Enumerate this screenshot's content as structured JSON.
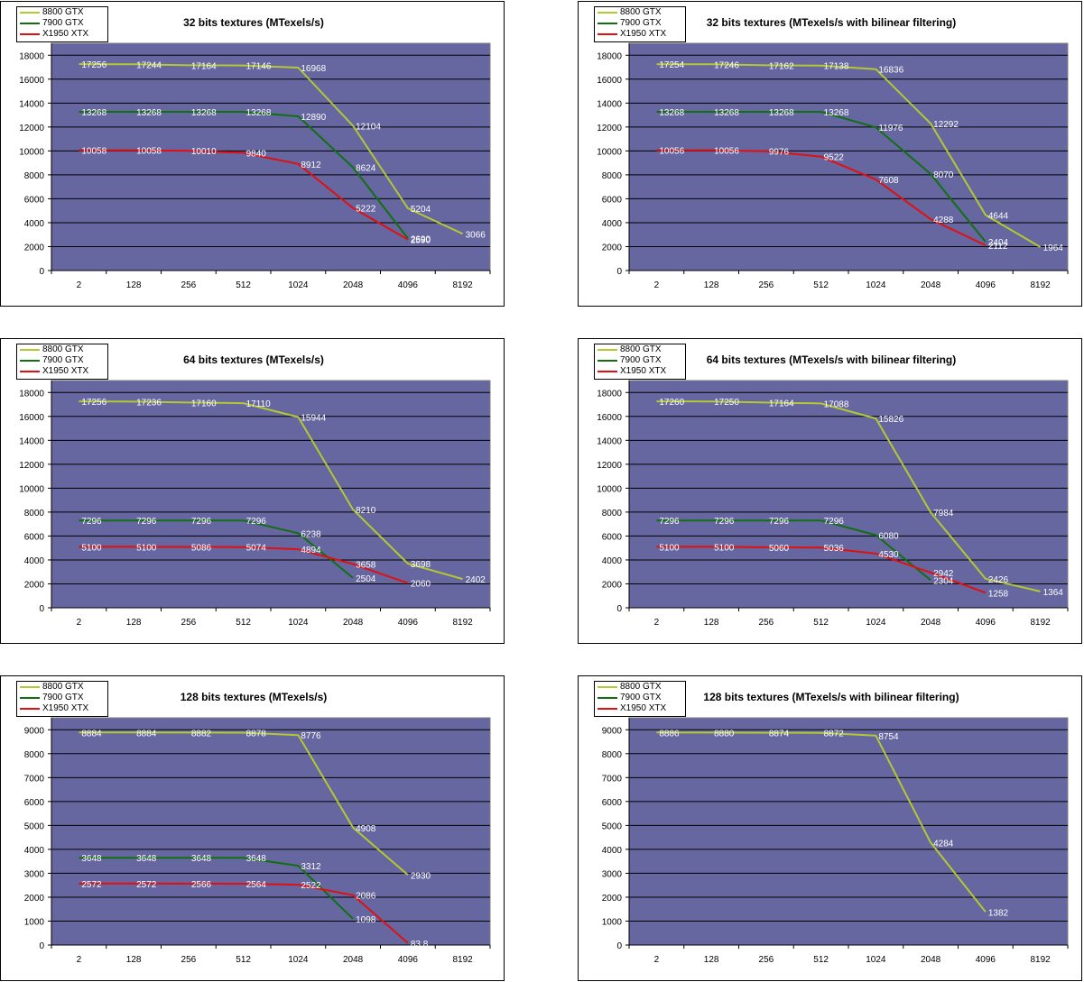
{
  "colors": {
    "plot_bg": "#6666a0",
    "grid": "#000000",
    "8800 GTX": "#b4c832",
    "7900 GTX": "#107010",
    "X1950 XTX": "#e01010",
    "data_label": "#ffffff"
  },
  "chart_data": [
    {
      "type": "line",
      "title": "32 bits textures (MTexels/s)",
      "categories": [
        "2",
        "128",
        "256",
        "512",
        "1024",
        "2048",
        "4096",
        "8192"
      ],
      "ylim": [
        0,
        19000
      ],
      "yticks": [
        0,
        2000,
        4000,
        6000,
        8000,
        10000,
        12000,
        14000,
        16000,
        18000
      ],
      "grid": true,
      "legend": "top-left",
      "series": [
        {
          "name": "8800 GTX",
          "values": [
            17256,
            17244,
            17164,
            17146,
            16968,
            12104,
            5204,
            3066
          ],
          "labels": [
            "17256",
            "17244",
            "17164",
            "17146",
            "16968",
            "12104",
            "5204",
            "3066"
          ]
        },
        {
          "name": "7900 GTX",
          "values": [
            13268,
            13268,
            13268,
            13268,
            12890,
            8624,
            2690,
            null
          ],
          "labels": [
            "13268",
            "13268",
            "13268",
            "13268",
            "12890",
            "8624",
            "2690",
            ""
          ]
        },
        {
          "name": "X1950 XTX",
          "values": [
            10058,
            10058,
            10010,
            9840,
            8912,
            5222,
            2590,
            null
          ],
          "labels": [
            "10058",
            "10058",
            "10010",
            "9840",
            "8912",
            "5222",
            "2590",
            ""
          ]
        }
      ]
    },
    {
      "type": "line",
      "title": "32 bits textures (MTexels/s with bilinear filtering)",
      "categories": [
        "2",
        "128",
        "256",
        "512",
        "1024",
        "2048",
        "4096",
        "8192"
      ],
      "ylim": [
        0,
        19000
      ],
      "yticks": [
        0,
        2000,
        4000,
        6000,
        8000,
        10000,
        12000,
        14000,
        16000,
        18000
      ],
      "grid": true,
      "legend": "top-left",
      "series": [
        {
          "name": "8800 GTX",
          "values": [
            17254,
            17246,
            17162,
            17138,
            16836,
            12292,
            4644,
            1964
          ],
          "labels": [
            "17254",
            "17246",
            "17162",
            "17138",
            "16836",
            "12292",
            "4644",
            "1964"
          ]
        },
        {
          "name": "7900 GTX",
          "values": [
            13268,
            13268,
            13268,
            13268,
            11976,
            8070,
            2404,
            null
          ],
          "labels": [
            "13268",
            "13268",
            "13268",
            "13268",
            "11976",
            "8070",
            "2404",
            ""
          ]
        },
        {
          "name": "X1950 XTX",
          "values": [
            10056,
            10056,
            9976,
            9522,
            7608,
            4288,
            2112,
            null
          ],
          "labels": [
            "10056",
            "10056",
            "9976",
            "9522",
            "7608",
            "4288",
            "2112",
            ""
          ]
        }
      ]
    },
    {
      "type": "line",
      "title": "64 bits textures (MTexels/s)",
      "categories": [
        "2",
        "128",
        "256",
        "512",
        "1024",
        "2048",
        "4096",
        "8192"
      ],
      "ylim": [
        0,
        19000
      ],
      "yticks": [
        0,
        2000,
        4000,
        6000,
        8000,
        10000,
        12000,
        14000,
        16000,
        18000
      ],
      "grid": true,
      "legend": "top-left",
      "series": [
        {
          "name": "8800 GTX",
          "values": [
            17256,
            17236,
            17160,
            17110,
            15944,
            8210,
            3698,
            2402
          ],
          "labels": [
            "17256",
            "17236",
            "17160",
            "17110",
            "15944",
            "8210",
            "3698",
            "2402"
          ]
        },
        {
          "name": "7900 GTX",
          "values": [
            7296,
            7296,
            7296,
            7296,
            6238,
            2504,
            null,
            null
          ],
          "labels": [
            "7296",
            "7296",
            "7296",
            "7296",
            "6238",
            "2504",
            "",
            ""
          ]
        },
        {
          "name": "X1950 XTX",
          "values": [
            5100,
            5100,
            5086,
            5074,
            4894,
            3658,
            2060,
            null
          ],
          "labels": [
            "5100",
            "5100",
            "5086",
            "5074",
            "4894",
            "3658",
            "2060",
            ""
          ]
        }
      ]
    },
    {
      "type": "line",
      "title": "64 bits textures (MTexels/s with bilinear filtering)",
      "categories": [
        "2",
        "128",
        "256",
        "512",
        "1024",
        "2048",
        "4096",
        "8192"
      ],
      "ylim": [
        0,
        19000
      ],
      "yticks": [
        0,
        2000,
        4000,
        6000,
        8000,
        10000,
        12000,
        14000,
        16000,
        18000
      ],
      "grid": true,
      "legend": "top-left",
      "series": [
        {
          "name": "8800 GTX",
          "values": [
            17260,
            17250,
            17164,
            17088,
            15826,
            7984,
            2426,
            1364
          ],
          "labels": [
            "17260",
            "17250",
            "17164",
            "17088",
            "15826",
            "7984",
            "2426",
            "1364"
          ]
        },
        {
          "name": "7900 GTX",
          "values": [
            7296,
            7296,
            7296,
            7296,
            6080,
            2304,
            null,
            null
          ],
          "labels": [
            "7296",
            "7296",
            "7296",
            "7296",
            "6080",
            "2304",
            "",
            ""
          ]
        },
        {
          "name": "X1950 XTX",
          "values": [
            5100,
            5100,
            5060,
            5036,
            4530,
            2942,
            1258,
            null
          ],
          "labels": [
            "5100",
            "5100",
            "5060",
            "5036",
            "4530",
            "2942",
            "1258",
            ""
          ]
        }
      ]
    },
    {
      "type": "line",
      "title": "128 bits textures (MTexels/s)",
      "categories": [
        "2",
        "128",
        "256",
        "512",
        "1024",
        "2048",
        "4096",
        "8192"
      ],
      "ylim": [
        0,
        9500
      ],
      "yticks": [
        0,
        1000,
        2000,
        3000,
        4000,
        5000,
        6000,
        7000,
        8000,
        9000
      ],
      "grid": true,
      "legend": "top-left",
      "series": [
        {
          "name": "8800 GTX",
          "values": [
            8884,
            8884,
            8882,
            8878,
            8776,
            4908,
            2930,
            null
          ],
          "labels": [
            "8884",
            "8884",
            "8882",
            "8878",
            "8776",
            "4908",
            "2930",
            ""
          ]
        },
        {
          "name": "7900 GTX",
          "values": [
            3648,
            3648,
            3648,
            3648,
            3312,
            1098,
            null,
            null
          ],
          "labels": [
            "3648",
            "3648",
            "3648",
            "3648",
            "3312",
            "1098",
            "",
            ""
          ]
        },
        {
          "name": "X1950 XTX",
          "values": [
            2572,
            2572,
            2566,
            2564,
            2522,
            2086,
            83.8,
            null
          ],
          "labels": [
            "2572",
            "2572",
            "2566",
            "2564",
            "2522",
            "2086",
            "83,8",
            ""
          ]
        }
      ]
    },
    {
      "type": "line",
      "title": "128 bits textures (MTexels/s with bilinear filtering)",
      "categories": [
        "2",
        "128",
        "256",
        "512",
        "1024",
        "2048",
        "4096",
        "8192"
      ],
      "ylim": [
        0,
        9500
      ],
      "yticks": [
        0,
        1000,
        2000,
        3000,
        4000,
        5000,
        6000,
        7000,
        8000,
        9000
      ],
      "grid": true,
      "legend": "top-left",
      "series": [
        {
          "name": "8800 GTX",
          "values": [
            8886,
            8880,
            8874,
            8872,
            8754,
            4284,
            1382,
            null
          ],
          "labels": [
            "8886",
            "8880",
            "8874",
            "8872",
            "8754",
            "4284",
            "1382",
            ""
          ]
        },
        {
          "name": "7900 GTX",
          "values": [
            null,
            null,
            null,
            null,
            null,
            null,
            null,
            null
          ],
          "labels": [
            "",
            "",
            "",
            "",
            "",
            "",
            "",
            ""
          ]
        },
        {
          "name": "X1950 XTX",
          "values": [
            null,
            null,
            null,
            null,
            null,
            null,
            null,
            null
          ],
          "labels": [
            "",
            "",
            "",
            "",
            "",
            "",
            "",
            ""
          ]
        }
      ]
    }
  ]
}
